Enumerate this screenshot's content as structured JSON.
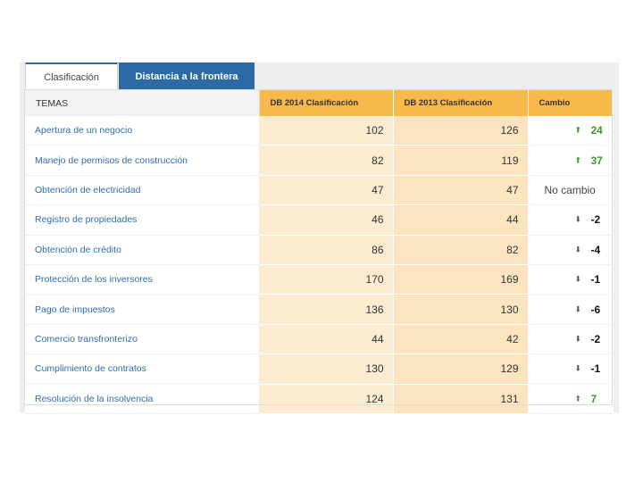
{
  "tabs": [
    {
      "label": "Clasificación",
      "active": true
    },
    {
      "label": "Distancia a la frontera",
      "active": false
    }
  ],
  "table": {
    "headers": {
      "temas": "TEMAS",
      "db2014": "DB 2014 Clasificación",
      "db2013": "DB 2013 Clasificación",
      "cambio": "Cambio"
    },
    "rows": [
      {
        "tema": "Apertura de un negocio",
        "db2014": "102",
        "db2013": "126",
        "cambio": "24",
        "direction": "up"
      },
      {
        "tema": "Manejo de permisos de construcción",
        "db2014": "82",
        "db2013": "119",
        "cambio": "37",
        "direction": "up"
      },
      {
        "tema": "Obtención de electricidad",
        "db2014": "47",
        "db2013": "47",
        "cambio": "No cambio",
        "direction": "none"
      },
      {
        "tema": "Registro de propiedades",
        "db2014": "46",
        "db2013": "44",
        "cambio": "-2",
        "direction": "down"
      },
      {
        "tema": "Obtención de crédito",
        "db2014": "86",
        "db2013": "82",
        "cambio": "-4",
        "direction": "down"
      },
      {
        "tema": "Protección de los inversores",
        "db2014": "170",
        "db2013": "169",
        "cambio": "-1",
        "direction": "down"
      },
      {
        "tema": "Pago de impuestos",
        "db2014": "136",
        "db2013": "130",
        "cambio": "-6",
        "direction": "down"
      },
      {
        "tema": "Comercio transfronterizo",
        "db2014": "44",
        "db2013": "42",
        "cambio": "-2",
        "direction": "down"
      },
      {
        "tema": "Cumplimiento de contratos",
        "db2014": "130",
        "db2013": "129",
        "cambio": "-1",
        "direction": "down"
      },
      {
        "tema": "Resolución de la insolvencia",
        "db2014": "124",
        "db2013": "131",
        "cambio": "7",
        "direction": "up"
      }
    ]
  },
  "icons": {
    "up": "arrow-up-icon",
    "down": "arrow-down-icon"
  },
  "colors": {
    "tab_active_border": "#2b6aa8",
    "tab_inactive_bg": "#2c6aa6",
    "header_bg": "#f8b94a",
    "col2014_bg": "#fbebd0",
    "col2013_bg": "#fbe4bf",
    "link": "#2e6eaa",
    "up": "#3a9a2a"
  }
}
